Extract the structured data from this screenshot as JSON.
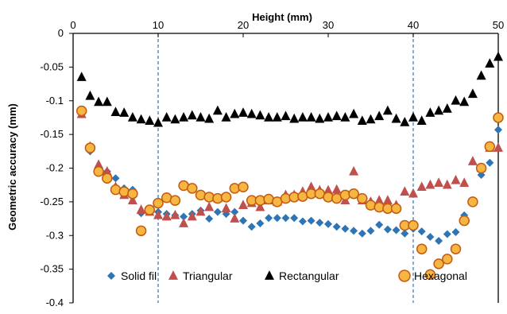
{
  "chart_data": {
    "type": "scatter",
    "title": "",
    "xlabel": "Height (mm)",
    "ylabel": "Geometric accuracy (mm)",
    "xlim": [
      0,
      50
    ],
    "ylim": [
      -0.4,
      0
    ],
    "x_ticks": [
      "0",
      "10",
      "20",
      "30",
      "40",
      "50"
    ],
    "y_ticks": [
      "0",
      "-0.05",
      "-0.1",
      "-0.15",
      "-0.2",
      "-0.25",
      "-0.3",
      "-0.35",
      "-0.4"
    ],
    "x_tick_values": [
      0,
      10,
      20,
      30,
      40,
      50
    ],
    "y_tick_values": [
      0,
      -0.05,
      -0.1,
      -0.15,
      -0.2,
      -0.25,
      -0.3,
      -0.35,
      -0.4
    ],
    "reference_lines_x": [
      10,
      40
    ],
    "legend_position": "bottom-inside",
    "series": [
      {
        "name": "Solid fil",
        "marker": "diamond",
        "color": "#2E75B6",
        "x": [
          1,
          2,
          3,
          4,
          5,
          6,
          7,
          8,
          9,
          10,
          11,
          12,
          13,
          14,
          15,
          16,
          17,
          18,
          19,
          20,
          21,
          22,
          23,
          24,
          25,
          26,
          27,
          28,
          29,
          30,
          31,
          32,
          33,
          34,
          35,
          36,
          37,
          38,
          39,
          40,
          41,
          42,
          43,
          44,
          45,
          46,
          47,
          48,
          49,
          50
        ],
        "y": [
          -0.12,
          -0.175,
          -0.198,
          -0.205,
          -0.215,
          -0.23,
          -0.232,
          -0.267,
          -0.262,
          -0.265,
          -0.268,
          -0.27,
          -0.272,
          -0.268,
          -0.263,
          -0.275,
          -0.265,
          -0.268,
          -0.265,
          -0.278,
          -0.287,
          -0.282,
          -0.274,
          -0.274,
          -0.274,
          -0.274,
          -0.279,
          -0.278,
          -0.281,
          -0.283,
          -0.287,
          -0.29,
          -0.293,
          -0.297,
          -0.293,
          -0.284,
          -0.291,
          -0.292,
          -0.297,
          -0.29,
          -0.294,
          -0.302,
          -0.308,
          -0.298,
          -0.295,
          -0.27,
          -0.248,
          -0.21,
          -0.192,
          -0.143
        ]
      },
      {
        "name": "Triangular",
        "marker": "triangle",
        "color": "#C0504D",
        "x": [
          1,
          2,
          3,
          4,
          5,
          6,
          7,
          8,
          9,
          10,
          11,
          12,
          13,
          14,
          15,
          16,
          17,
          18,
          19,
          20,
          21,
          22,
          23,
          24,
          25,
          26,
          27,
          28,
          29,
          30,
          31,
          32,
          33,
          34,
          35,
          36,
          37,
          38,
          39,
          40,
          41,
          42,
          43,
          44,
          45,
          46,
          47,
          48,
          49,
          50
        ],
        "y": [
          -0.12,
          -0.168,
          -0.195,
          -0.205,
          -0.228,
          -0.24,
          -0.248,
          -0.262,
          -0.265,
          -0.27,
          -0.272,
          -0.27,
          -0.282,
          -0.272,
          -0.265,
          -0.258,
          -0.245,
          -0.26,
          -0.275,
          -0.255,
          -0.252,
          -0.258,
          -0.248,
          -0.25,
          -0.24,
          -0.24,
          -0.235,
          -0.228,
          -0.233,
          -0.233,
          -0.232,
          -0.248,
          -0.205,
          -0.248,
          -0.25,
          -0.248,
          -0.248,
          -0.255,
          -0.235,
          -0.238,
          -0.228,
          -0.225,
          -0.222,
          -0.225,
          -0.218,
          -0.222,
          -0.19,
          -0.2,
          -0.17,
          -0.17
        ]
      },
      {
        "name": "Rectangular",
        "marker": "triangle",
        "color": "#000000",
        "x": [
          1,
          2,
          3,
          4,
          5,
          6,
          7,
          8,
          9,
          10,
          11,
          12,
          13,
          14,
          15,
          16,
          17,
          18,
          19,
          20,
          21,
          22,
          23,
          24,
          25,
          26,
          27,
          28,
          29,
          30,
          31,
          32,
          33,
          34,
          35,
          36,
          37,
          38,
          39,
          40,
          41,
          42,
          43,
          44,
          45,
          46,
          47,
          48,
          49,
          50
        ],
        "y": [
          -0.065,
          -0.093,
          -0.102,
          -0.102,
          -0.117,
          -0.118,
          -0.125,
          -0.128,
          -0.13,
          -0.133,
          -0.125,
          -0.128,
          -0.125,
          -0.122,
          -0.125,
          -0.127,
          -0.115,
          -0.125,
          -0.12,
          -0.118,
          -0.12,
          -0.122,
          -0.125,
          -0.125,
          -0.123,
          -0.127,
          -0.125,
          -0.125,
          -0.127,
          -0.125,
          -0.123,
          -0.125,
          -0.12,
          -0.13,
          -0.128,
          -0.123,
          -0.115,
          -0.127,
          -0.132,
          -0.125,
          -0.13,
          -0.118,
          -0.115,
          -0.112,
          -0.1,
          -0.102,
          -0.09,
          -0.063,
          -0.045,
          -0.035
        ]
      },
      {
        "name": "Hexagonal",
        "marker": "circle",
        "color": "#F5B642",
        "edge_color": "#C55A11",
        "x": [
          1,
          2,
          3,
          4,
          5,
          6,
          7,
          8,
          9,
          10,
          11,
          12,
          13,
          14,
          15,
          16,
          17,
          18,
          19,
          20,
          21,
          22,
          23,
          24,
          25,
          26,
          27,
          28,
          29,
          30,
          31,
          32,
          33,
          34,
          35,
          36,
          37,
          38,
          39,
          40,
          41,
          42,
          43,
          44,
          45,
          46,
          47,
          48,
          49,
          50
        ],
        "y": [
          -0.115,
          -0.17,
          -0.205,
          -0.215,
          -0.232,
          -0.235,
          -0.238,
          -0.293,
          -0.262,
          -0.252,
          -0.244,
          -0.248,
          -0.226,
          -0.23,
          -0.24,
          -0.243,
          -0.245,
          -0.243,
          -0.23,
          -0.228,
          -0.248,
          -0.248,
          -0.246,
          -0.25,
          -0.245,
          -0.243,
          -0.242,
          -0.238,
          -0.238,
          -0.243,
          -0.245,
          -0.24,
          -0.238,
          -0.245,
          -0.255,
          -0.258,
          -0.26,
          -0.26,
          -0.285,
          -0.285,
          -0.32,
          -0.358,
          -0.342,
          -0.335,
          -0.32,
          -0.278,
          -0.25,
          -0.2,
          -0.168,
          -0.125
        ]
      }
    ]
  }
}
